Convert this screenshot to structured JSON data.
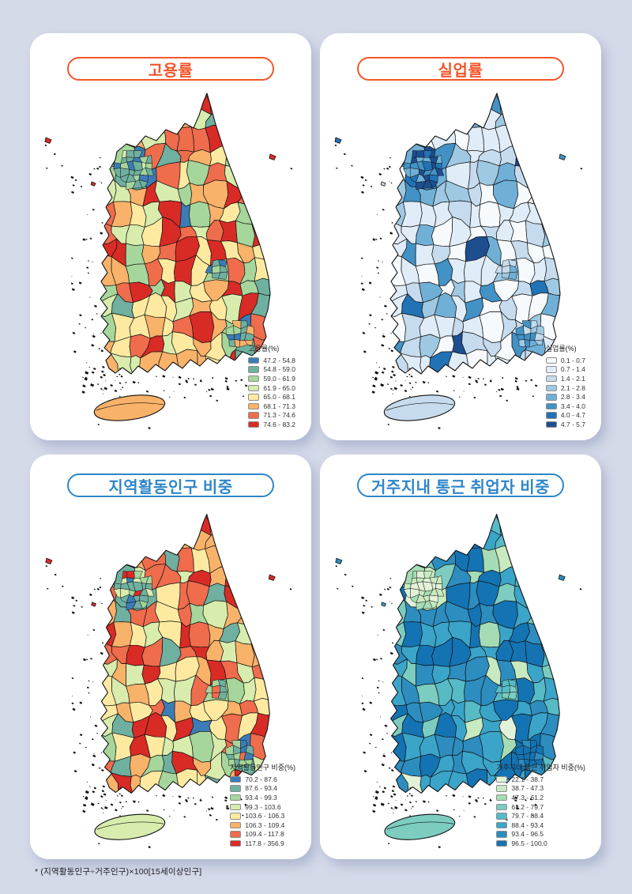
{
  "page": {
    "background_color": "#d5dae9",
    "footnote": "* (지역활동인구÷거주인구)×100[15세이상인구]"
  },
  "maps": [
    {
      "key": "employment-rate",
      "title": "고용률",
      "accent_color": "#f4562b",
      "legend_title": "고용률(%)",
      "palette": [
        "#3c7cb6",
        "#6fb0a0",
        "#a6d69b",
        "#d8ecad",
        "#fdeaa0",
        "#f9b26a",
        "#ef6c4d",
        "#d92b26"
      ],
      "classes": [
        "47.2 - 54.8",
        "54.8 - 59.0",
        "59.0 - 61.9",
        "61.9 - 65.0",
        "65.0 - 68.1",
        "68.1 - 71.3",
        "71.3 - 74.6",
        "74.6 - 83.2"
      ]
    },
    {
      "key": "unemployment-rate",
      "title": "실업률",
      "accent_color": "#f4562b",
      "legend_title": "실업률(%)",
      "palette": [
        "#f6fafd",
        "#e0ecf7",
        "#c6dcee",
        "#9fc9e2",
        "#70b0d7",
        "#4292c6",
        "#2272b6",
        "#1d4e8f"
      ],
      "classes": [
        "0.1 - 0.7",
        "0.7 - 1.4",
        "1.4 - 2.1",
        "2.1 - 2.8",
        "2.8 - 3.4",
        "3.4 - 4.0",
        "4.0 - 4.7",
        "4.7 - 5.7"
      ]
    },
    {
      "key": "active-population-share",
      "title": "지역활동인구 비중",
      "accent_color": "#2e86c9",
      "legend_title": "지역활동인구 비중(%)",
      "palette": [
        "#3c7cb6",
        "#6fb0a0",
        "#a6d69b",
        "#d8ecad",
        "#fdeaa0",
        "#f9b26a",
        "#ef6c4d",
        "#d92b26"
      ],
      "classes": [
        "70.2 - 87.6",
        "87.6 - 93.4",
        "93.4 - 99.3",
        "99.3 - 103.6",
        "103.6 - 106.3",
        "106.3 - 109.4",
        "109.4 - 117.8",
        "117.8 - 356.9"
      ]
    },
    {
      "key": "commute-within-residence",
      "title": "거주지내 통근 취업자 비중",
      "accent_color": "#2e86c9",
      "legend_title": "거주지내 통근 취업자 비중(%)",
      "palette": [
        "#e2f2d9",
        "#c8eac0",
        "#a6dcb5",
        "#7ccdc0",
        "#57bbc6",
        "#3ba4c9",
        "#2d8dbf",
        "#1473b2"
      ],
      "classes": [
        "22.1 - 38.7",
        "38.7 - 47.3",
        "47.3 - 61.2",
        "61.2 - 79.7",
        "79.7 - 88.4",
        "88.4 - 93.4",
        "93.4 - 96.5",
        "96.5 - 100.0"
      ]
    }
  ]
}
